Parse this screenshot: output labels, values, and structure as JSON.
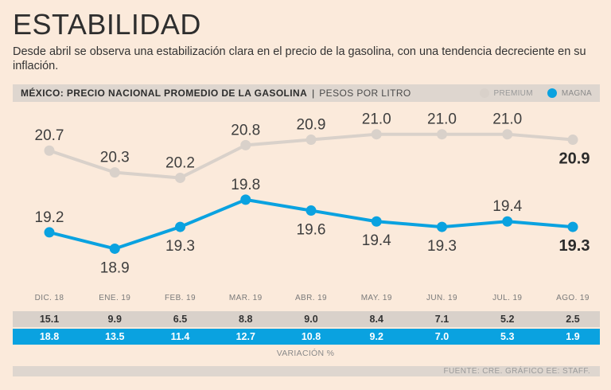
{
  "title": "ESTABILIDAD",
  "subtitle": "Desde abril se observa una estabilización clara en el precio de la gasolina, con una tendencia decreciente en su inflación.",
  "header": {
    "main": "MÉXICO: PRECIO NACIONAL PROMEDIO DE LA GASOLINA",
    "separator": "|",
    "unit": "PESOS POR LITRO"
  },
  "legend": {
    "premium": "PREMIUM",
    "magna": "MAGNA"
  },
  "colors": {
    "premium": "#d9d1ca",
    "magna": "#0aa2e0",
    "background": "#fbeadb"
  },
  "chart_data": {
    "type": "line",
    "title": "MÉXICO: PRECIO NACIONAL PROMEDIO DE LA GASOLINA",
    "ylabel": "PESOS POR LITRO",
    "xlabel": "",
    "categories": [
      "DIC. 18",
      "ENE. 19",
      "FEB. 19",
      "MAR. 19",
      "ABR. 19",
      "MAY. 19",
      "JUN. 19",
      "JUL. 19",
      "AGO. 19"
    ],
    "ylim": [
      18.6,
      21.2
    ],
    "grid": false,
    "legend_position": "top-right",
    "series": [
      {
        "name": "PREMIUM",
        "color": "#d9d1ca",
        "values": [
          20.7,
          20.3,
          20.2,
          20.8,
          20.9,
          21.0,
          21.0,
          21.0,
          20.9
        ],
        "labels": [
          "20.7",
          "20.3",
          "20.2",
          "20.8",
          "20.9",
          "21.0",
          "21.0",
          "21.0",
          "20.9"
        ],
        "variation": [
          "15.1",
          "9.9",
          "6.5",
          "8.8",
          "9.0",
          "8.4",
          "7.1",
          "5.2",
          "2.5"
        ]
      },
      {
        "name": "MAGNA",
        "color": "#0aa2e0",
        "values": [
          19.2,
          18.9,
          19.3,
          19.8,
          19.6,
          19.4,
          19.3,
          19.4,
          19.3
        ],
        "labels": [
          "19.2",
          "18.9",
          "19.3",
          "19.8",
          "19.6",
          "19.4",
          "19.3",
          "19.4",
          "19.3"
        ],
        "variation": [
          "18.8",
          "13.5",
          "11.4",
          "12.7",
          "10.8",
          "9.2",
          "7.0",
          "5.3",
          "1.9"
        ]
      }
    ]
  },
  "variation_label": "VARIACIÓN %",
  "source": "FUENTE: CRE. GRÁFICO EE: STAFF."
}
